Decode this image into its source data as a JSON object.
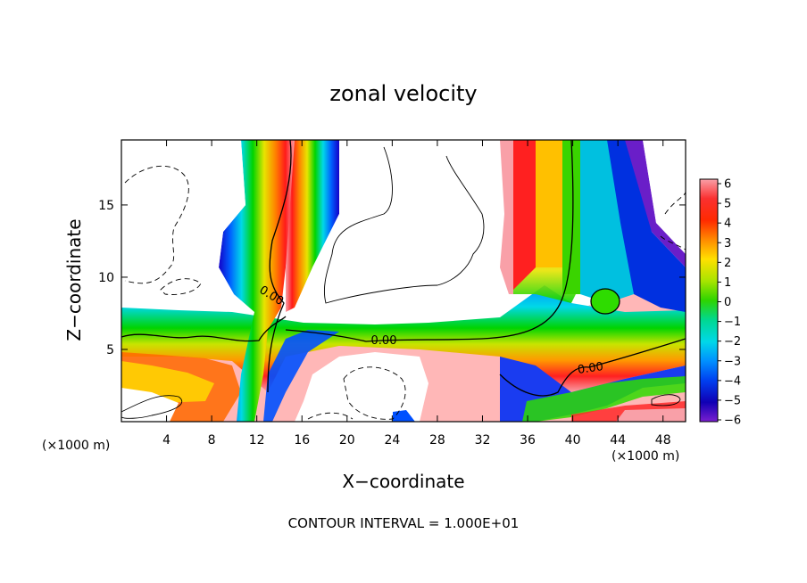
{
  "chart_data": {
    "type": "heatmap",
    "title": "zonal velocity",
    "xlabel": "X−coordinate",
    "ylabel": "Z−coordinate",
    "x_unit": "(×1000 m)",
    "y_unit": "(×1000 m)",
    "xlim": [
      0,
      50
    ],
    "ylim": [
      0,
      19.5
    ],
    "x_ticks": [
      4,
      8,
      12,
      16,
      20,
      24,
      28,
      32,
      36,
      40,
      44,
      48
    ],
    "y_ticks": [
      5,
      10,
      15
    ],
    "colorbar": {
      "min": -6,
      "max": 6,
      "ticks": [
        6,
        5,
        4,
        3,
        2,
        1,
        0,
        -1,
        -2,
        -3,
        -4,
        -5,
        -6
      ],
      "tick_labels": [
        "6",
        "5",
        "4",
        "3",
        "2",
        "1",
        "0",
        "−1",
        "−2",
        "−3",
        "−4",
        "−5",
        "−6"
      ],
      "colors": [
        "#f99ea5",
        "#fa3c3c",
        "#ff0000",
        "#ff6a00",
        "#ffa800",
        "#ffe600",
        "#c9e800",
        "#5ddc00",
        "#00d45a",
        "#00e0c0",
        "#00a8f0",
        "#0066ff",
        "#1e28e6",
        "#1400b4",
        "#6e1ec8"
      ]
    },
    "contour_labels": [
      "0.00",
      "0.00",
      "0.00"
    ],
    "footer": "CONTOUR INTERVAL = 1.000E+01",
    "grid": false,
    "legend_position": "right"
  }
}
